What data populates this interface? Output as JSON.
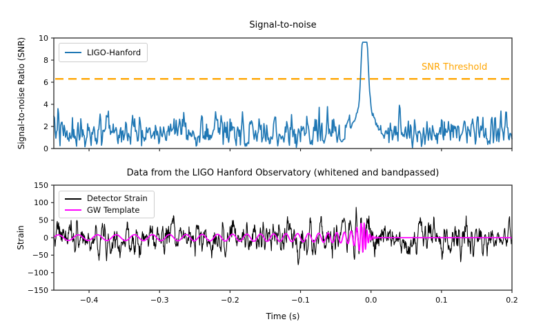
{
  "figure": {
    "background": "#ffffff"
  },
  "chart_data": [
    {
      "type": "line",
      "title": "Signal-to-noise",
      "xlabel": "",
      "ylabel": "Signal-to-noise Ratio (SNR)",
      "xlim": [
        -0.45,
        0.2
      ],
      "ylim": [
        0,
        10
      ],
      "grid": false,
      "yticks": [
        0,
        2,
        4,
        6,
        8,
        10
      ],
      "ytick_labels": [
        "0",
        "2",
        "4",
        "6",
        "8",
        "10"
      ],
      "xticks": [
        -0.4,
        -0.3,
        -0.2,
        -0.1,
        0.0,
        0.1,
        0.2
      ],
      "xtick_labels": [
        "",
        "",
        "",
        "",
        "",
        "",
        ""
      ],
      "legend_position": "upper left",
      "legend": [
        {
          "label": "LIGO-Hanford",
          "color": "#1f77b4"
        }
      ],
      "threshold": {
        "label": "SNR Threshold",
        "value": 6.3,
        "color": "#FFA500",
        "style": "dashed"
      },
      "series_summary": {
        "name": "LIGO-Hanford SNR",
        "color": "#1f77b4",
        "noise_floor_range": [
          0,
          4.5
        ],
        "noise_mean": 1.5,
        "peak": {
          "time_s": -0.009,
          "snr": 9.6
        },
        "shoulder": {
          "snr": 3.2,
          "half_width_s": 0.024
        }
      },
      "synthesis": {
        "seed": 42,
        "n_points": 664,
        "smooth_window": 4,
        "rayleigh_sigma": 1.18,
        "peak_width_s": 0.0055
      }
    },
    {
      "type": "line",
      "title": "Data from the LIGO Hanford Observatory (whitened and bandpassed)",
      "xlabel": "Time (s)",
      "ylabel": "Strain",
      "xlim": [
        -0.45,
        0.2
      ],
      "ylim": [
        -150,
        150
      ],
      "grid": false,
      "yticks": [
        -150,
        -100,
        -50,
        0,
        50,
        100,
        150
      ],
      "ytick_labels": [
        "−150",
        "−100",
        "−50",
        "0",
        "50",
        "100",
        "150"
      ],
      "xticks": [
        -0.4,
        -0.3,
        -0.2,
        -0.1,
        0.0,
        0.1,
        0.2
      ],
      "xtick_labels": [
        "−0.4",
        "−0.3",
        "−0.2",
        "−0.1",
        "0.0",
        "0.1",
        "0.2"
      ],
      "legend_position": "upper left",
      "legend": [
        {
          "label": "Detector Strain",
          "color": "#000000"
        },
        {
          "label": "GW Template",
          "color": "#ff00ff"
        }
      ],
      "series_summary": [
        {
          "name": "Detector Strain",
          "color": "#000000",
          "noise_std": 23,
          "typical_extent": [
            -70,
            70
          ]
        },
        {
          "name": "GW Template",
          "color": "#ff00ff",
          "start_amplitude": 8,
          "peak_amplitude": 42,
          "start_frequency_hz": 35,
          "merger_time_s": -0.009,
          "ringdown_decay_s": 0.005,
          "flat_zero_after_merger": true
        }
      ],
      "synthesis": {
        "seed": 7,
        "n_points": 1330,
        "smooth_window": 5,
        "noise_scale": 52,
        "signal_in_noise_gain": 0.85
      }
    }
  ],
  "colors": {
    "snr_line": "#1f77b4",
    "threshold": "#FFA500",
    "strain_line": "#000000",
    "template_line": "#ff00ff",
    "spine": "#262626",
    "tick_label": "#000000"
  }
}
